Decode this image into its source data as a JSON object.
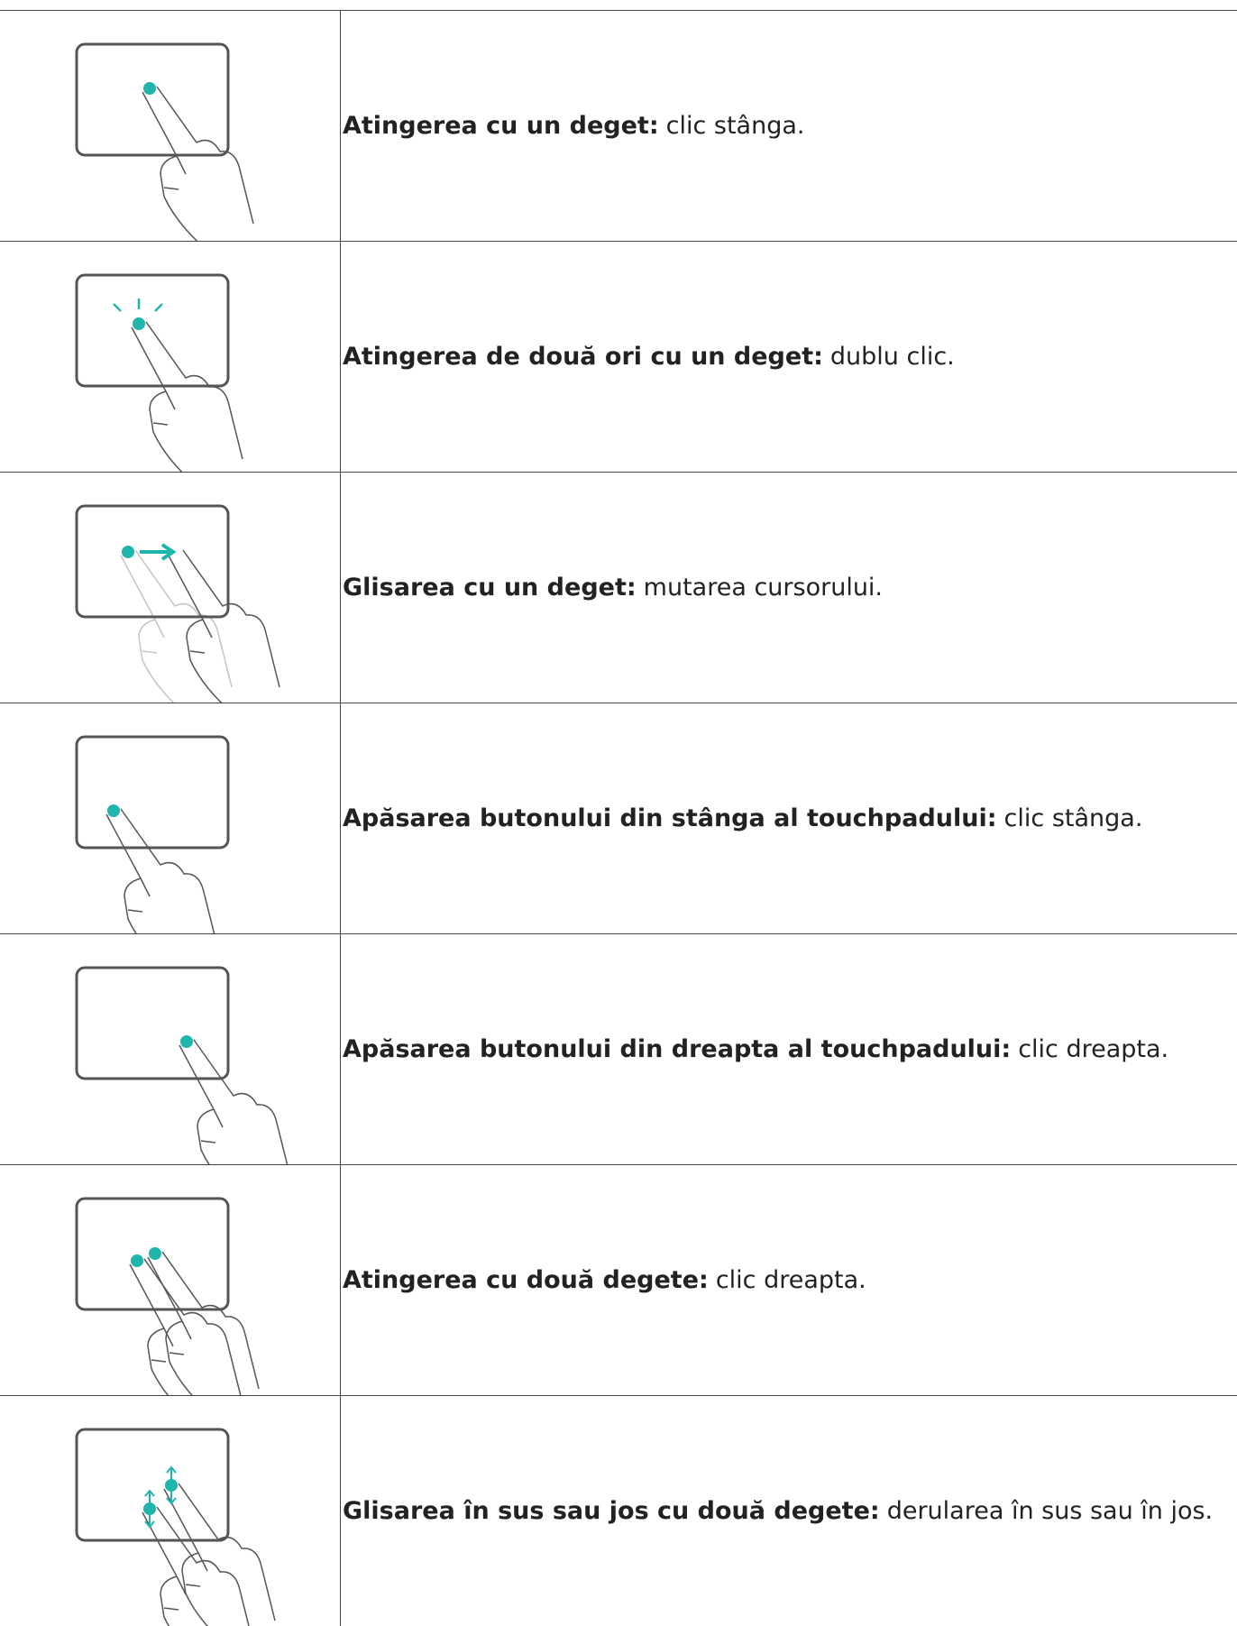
{
  "table": {
    "rows": [
      {
        "term": "Atingerea cu un deget:",
        "description": "clic stânga."
      },
      {
        "term": "Atingerea de două ori cu un deget:",
        "description": "dublu clic."
      },
      {
        "term": "Glisarea cu un deget:",
        "description": "mutarea cursorului."
      },
      {
        "term": "Apăsarea butonului din stânga al touchpadului:",
        "description": "clic stânga."
      },
      {
        "term": "Apăsarea butonului din dreapta al touchpadului:",
        "description": "clic dreapta."
      },
      {
        "term": "Atingerea cu două degete:",
        "description": "clic dreapta."
      },
      {
        "term": "Glisarea în sus sau jos cu două degete:",
        "description": "derularea în sus sau în jos."
      }
    ]
  }
}
